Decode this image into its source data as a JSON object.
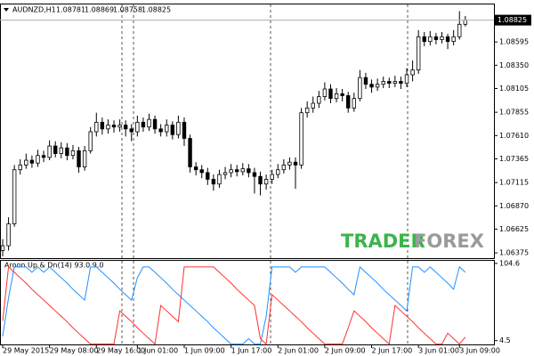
{
  "chart_data": [
    {
      "type": "candlestick",
      "symbol": "AUDNZD,H1",
      "categories": [
        "29 May 2015",
        null,
        null,
        null,
        null,
        null,
        null,
        null,
        "29 May 08:00",
        null,
        null,
        null,
        null,
        null,
        null,
        null,
        "29 May 16:00",
        null,
        null,
        null,
        null,
        null,
        null,
        "1 Jun 01:00",
        null,
        null,
        null,
        null,
        null,
        null,
        null,
        "1 Jun 09:00",
        null,
        null,
        null,
        null,
        null,
        null,
        null,
        "1 Jun 17:00",
        null,
        null,
        null,
        null,
        null,
        null,
        null,
        "2 Jun 01:00",
        null,
        null,
        null,
        null,
        null,
        null,
        null,
        "2 Jun 09:00",
        null,
        null,
        null,
        null,
        null,
        null,
        null,
        "2 Jun 17:00",
        null,
        null,
        null,
        null,
        null,
        null,
        null,
        "3 Jun 01:00",
        null,
        null,
        null,
        null,
        null,
        null,
        "3 Jun 09:00",
        null
      ],
      "open": [
        1.064,
        1.0645,
        1.0668,
        1.0725,
        1.073,
        1.0735,
        1.0732,
        1.074,
        1.0738,
        1.075,
        1.0742,
        1.0748,
        1.074,
        1.0745,
        1.0728,
        1.0745,
        1.0765,
        1.0775,
        1.0768,
        1.0772,
        1.077,
        1.0772,
        1.0768,
        1.0765,
        1.0775,
        1.077,
        1.0778,
        1.0768,
        1.0765,
        1.0772,
        1.0762,
        1.0775,
        1.0758,
        1.0728,
        1.0725,
        1.0722,
        1.0715,
        1.071,
        1.072,
        1.0722,
        1.0725,
        1.0723,
        1.0726,
        1.0722,
        1.0718,
        1.071,
        1.0715,
        1.072,
        1.0725,
        1.073,
        1.0733,
        1.073,
        1.0785,
        1.079,
        1.0795,
        1.0802,
        1.081,
        1.08,
        1.0805,
        1.0803,
        1.079,
        1.08,
        1.0822,
        1.0815,
        1.0812,
        1.0815,
        1.0818,
        1.0816,
        1.0818,
        1.0816,
        1.0825,
        1.083,
        1.0865,
        1.086,
        1.0865,
        1.0862,
        1.0865,
        1.086,
        1.0865,
        1.08781
      ],
      "high": [
        1.0652,
        1.0675,
        1.073,
        1.0736,
        1.0742,
        1.074,
        1.0746,
        1.0745,
        1.0756,
        1.0755,
        1.0754,
        1.0753,
        1.0751,
        1.0749,
        1.075,
        1.077,
        1.0785,
        1.078,
        1.0778,
        1.0777,
        1.0778,
        1.0777,
        1.0773,
        1.0782,
        1.078,
        1.0784,
        1.0782,
        1.0773,
        1.0778,
        1.0776,
        1.0782,
        1.078,
        1.0762,
        1.0733,
        1.073,
        1.0727,
        1.072,
        1.0725,
        1.0728,
        1.0731,
        1.073,
        1.0732,
        1.0731,
        1.0727,
        1.0723,
        1.072,
        1.0725,
        1.0731,
        1.0736,
        1.0738,
        1.0738,
        1.079,
        1.0797,
        1.0802,
        1.0808,
        1.0817,
        1.0815,
        1.0811,
        1.081,
        1.0807,
        1.0806,
        1.083,
        1.0827,
        1.082,
        1.0821,
        1.0823,
        1.0822,
        1.0824,
        1.0823,
        1.0832,
        1.084,
        1.0872,
        1.087,
        1.0871,
        1.0869,
        1.087,
        1.0868,
        1.0872,
        1.0892,
        1.08869
      ],
      "low": [
        1.0634,
        1.064,
        1.0665,
        1.072,
        1.0726,
        1.0727,
        1.0728,
        1.0733,
        1.0735,
        1.0738,
        1.0737,
        1.0735,
        1.0736,
        1.0722,
        1.0724,
        1.0742,
        1.076,
        1.0762,
        1.0763,
        1.0764,
        1.0765,
        1.076,
        1.0755,
        1.076,
        1.0765,
        1.0766,
        1.0763,
        1.076,
        1.076,
        1.0757,
        1.0758,
        1.075,
        1.0722,
        1.0719,
        1.0716,
        1.0709,
        1.0703,
        1.0706,
        1.0715,
        1.0717,
        1.0718,
        1.0719,
        1.0717,
        1.07,
        1.0698,
        1.0704,
        1.071,
        1.0716,
        1.0721,
        1.0725,
        1.0705,
        1.0726,
        1.078,
        1.0785,
        1.079,
        1.0798,
        1.0795,
        1.0796,
        1.0797,
        1.0785,
        1.0786,
        1.0797,
        1.081,
        1.0806,
        1.0808,
        1.0811,
        1.0811,
        1.0812,
        1.081,
        1.0812,
        1.0818,
        1.0826,
        1.0855,
        1.0856,
        1.0857,
        1.0858,
        1.0852,
        1.0856,
        1.0862,
        1.08758
      ],
      "close": [
        1.0645,
        1.0668,
        1.0725,
        1.073,
        1.0735,
        1.0732,
        1.074,
        1.0738,
        1.075,
        1.0742,
        1.0748,
        1.074,
        1.0745,
        1.0728,
        1.0745,
        1.0765,
        1.0775,
        1.0768,
        1.0772,
        1.077,
        1.0772,
        1.0768,
        1.0765,
        1.0775,
        1.077,
        1.0778,
        1.0768,
        1.0765,
        1.0772,
        1.0762,
        1.0775,
        1.0758,
        1.0728,
        1.0725,
        1.0722,
        1.0715,
        1.071,
        1.072,
        1.0722,
        1.0725,
        1.0723,
        1.0726,
        1.0722,
        1.0718,
        1.071,
        1.0715,
        1.072,
        1.0725,
        1.073,
        1.0733,
        1.073,
        1.0785,
        1.079,
        1.0795,
        1.0802,
        1.081,
        1.08,
        1.0805,
        1.0803,
        1.079,
        1.08,
        1.0822,
        1.0815,
        1.0812,
        1.0815,
        1.0818,
        1.0816,
        1.0818,
        1.0816,
        1.0825,
        1.083,
        1.0865,
        1.086,
        1.0865,
        1.0862,
        1.0865,
        1.086,
        1.0865,
        1.08781,
        1.08825
      ],
      "ylim": [
        1.0632,
        1.0899
      ],
      "yticks": [
        1.08595,
        {
          "value": 1.0835,
          "label": "1.08350"
        },
        1.08105,
        1.07855,
        {
          "value": 1.0761,
          "label": "1.07610"
        },
        1.07365,
        1.07115,
        {
          "value": 1.0687,
          "label": "1.06870"
        },
        1.06625,
        1.06375
      ],
      "grid": false,
      "up_color": "#ffffff",
      "down_color": "#000000"
    },
    {
      "type": "line",
      "title": "Aroon Up & Dn(14) 93.0 9.0",
      "series": [
        {
          "color": "#1e90ff",
          "values": [
            10,
            60,
            100,
            100,
            100,
            93,
            100,
            93,
            100,
            93,
            86,
            79,
            71,
            64,
            57,
            100,
            100,
            93,
            86,
            79,
            71,
            64,
            57,
            86,
            100,
            100,
            93,
            86,
            79,
            71,
            64,
            57,
            50,
            43,
            36,
            29,
            21,
            14,
            7,
            0,
            0,
            0,
            7,
            0,
            0,
            36,
            100,
            100,
            100,
            100,
            93,
            100,
            100,
            100,
            100,
            100,
            93,
            86,
            79,
            71,
            64,
            100,
            93,
            86,
            79,
            71,
            64,
            57,
            50,
            43,
            100,
            100,
            93,
            100,
            93,
            86,
            79,
            71,
            100,
            93
          ]
        },
        {
          "color": "#ff3030",
          "values": [
            30,
            100,
            93,
            86,
            79,
            71,
            64,
            57,
            50,
            43,
            36,
            29,
            21,
            14,
            7,
            0,
            0,
            0,
            0,
            0,
            43,
            36,
            29,
            21,
            14,
            7,
            0,
            50,
            43,
            36,
            29,
            100,
            100,
            100,
            100,
            100,
            100,
            93,
            86,
            79,
            71,
            64,
            57,
            50,
            7,
            0,
            64,
            57,
            50,
            43,
            36,
            29,
            21,
            14,
            7,
            0,
            0,
            0,
            0,
            21,
            43,
            36,
            29,
            21,
            14,
            7,
            0,
            50,
            43,
            36,
            29,
            21,
            14,
            7,
            0,
            0,
            14,
            7,
            0,
            9
          ]
        }
      ],
      "ylim": [
        -0.5,
        108
      ],
      "yticks": [
        104.6,
        4.5
      ]
    }
  ],
  "watermark": [
    "TRADER",
    "FOREX"
  ]
}
